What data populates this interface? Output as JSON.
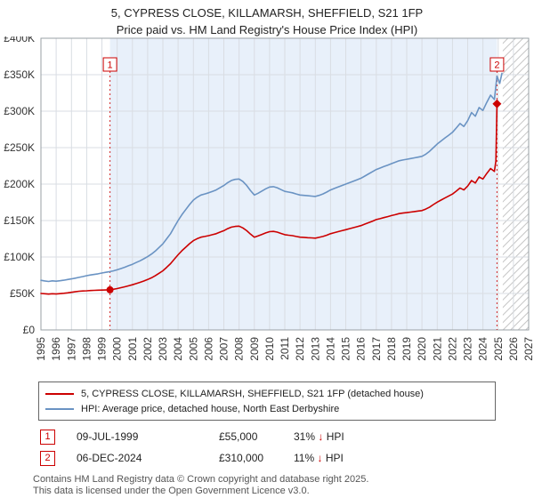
{
  "chart_data": {
    "type": "line",
    "title": "5, CYPRESS CLOSE, KILLAMARSH, SHEFFIELD, S21 1FP",
    "subtitle": "Price paid vs. HM Land Registry's House Price Index (HPI)",
    "xlim": [
      1995,
      2027
    ],
    "ylim": [
      0,
      400000
    ],
    "grid": true,
    "legend_position": "bottom",
    "x_ticks": [
      1995,
      1996,
      1997,
      1998,
      1999,
      2000,
      2001,
      2002,
      2003,
      2004,
      2005,
      2006,
      2007,
      2008,
      2009,
      2010,
      2011,
      2012,
      2013,
      2014,
      2015,
      2016,
      2017,
      2018,
      2019,
      2020,
      2021,
      2022,
      2023,
      2024,
      2025,
      2026,
      2027
    ],
    "y_ticks": [
      [
        0,
        "£0"
      ],
      [
        50000,
        "£50K"
      ],
      [
        100000,
        "£100K"
      ],
      [
        150000,
        "£150K"
      ],
      [
        200000,
        "£200K"
      ],
      [
        250000,
        "£250K"
      ],
      [
        300000,
        "£300K"
      ],
      [
        350000,
        "£350K"
      ],
      [
        400000,
        "£400K"
      ]
    ],
    "series": [
      {
        "key": "property",
        "name": "5, CYPRESS CLOSE, KILLAMARSH, SHEFFIELD, S21 1FP (detached house)",
        "color": "#cc0000",
        "points": [
          [
            1995.0,
            50000
          ],
          [
            1995.25,
            49600
          ],
          [
            1995.5,
            49100
          ],
          [
            1995.75,
            49600
          ],
          [
            1996.0,
            49300
          ],
          [
            1996.25,
            49700
          ],
          [
            1996.5,
            50300
          ],
          [
            1996.75,
            50900
          ],
          [
            1997.0,
            51600
          ],
          [
            1997.25,
            52300
          ],
          [
            1997.5,
            53100
          ],
          [
            1997.75,
            53400
          ],
          [
            1998.0,
            53600
          ],
          [
            1998.25,
            54000
          ],
          [
            1998.5,
            54300
          ],
          [
            1998.75,
            54500
          ],
          [
            1999.0,
            54600
          ],
          [
            1999.25,
            54800
          ],
          [
            1999.53,
            55000
          ],
          [
            1999.75,
            55700
          ],
          [
            2000.0,
            56700
          ],
          [
            2000.25,
            57900
          ],
          [
            2000.5,
            59100
          ],
          [
            2000.75,
            60500
          ],
          [
            2001.0,
            61900
          ],
          [
            2001.25,
            63500
          ],
          [
            2001.5,
            65200
          ],
          [
            2001.75,
            67100
          ],
          [
            2002.0,
            69100
          ],
          [
            2002.25,
            71500
          ],
          [
            2002.5,
            74300
          ],
          [
            2002.75,
            77700
          ],
          [
            2003.0,
            81100
          ],
          [
            2003.25,
            85900
          ],
          [
            2003.5,
            90800
          ],
          [
            2003.75,
            96900
          ],
          [
            2004.0,
            103100
          ],
          [
            2004.25,
            108600
          ],
          [
            2004.5,
            113400
          ],
          [
            2004.75,
            118300
          ],
          [
            2005.0,
            122400
          ],
          [
            2005.25,
            125100
          ],
          [
            2005.5,
            127200
          ],
          [
            2005.75,
            128200
          ],
          [
            2006.0,
            129300
          ],
          [
            2006.25,
            130600
          ],
          [
            2006.5,
            132000
          ],
          [
            2006.75,
            134100
          ],
          [
            2007.0,
            136100
          ],
          [
            2007.25,
            138900
          ],
          [
            2007.5,
            141000
          ],
          [
            2007.75,
            142000
          ],
          [
            2008.0,
            142300
          ],
          [
            2008.25,
            139900
          ],
          [
            2008.5,
            136100
          ],
          [
            2008.75,
            131300
          ],
          [
            2009.0,
            127200
          ],
          [
            2009.25,
            128900
          ],
          [
            2009.5,
            131000
          ],
          [
            2009.75,
            133000
          ],
          [
            2010.0,
            134800
          ],
          [
            2010.25,
            135100
          ],
          [
            2010.5,
            134100
          ],
          [
            2010.75,
            132300
          ],
          [
            2011.0,
            130600
          ],
          [
            2011.25,
            129900
          ],
          [
            2011.5,
            129300
          ],
          [
            2011.75,
            128200
          ],
          [
            2012.0,
            127200
          ],
          [
            2012.25,
            126900
          ],
          [
            2012.5,
            126500
          ],
          [
            2012.75,
            126200
          ],
          [
            2013.0,
            125800
          ],
          [
            2013.25,
            126900
          ],
          [
            2013.5,
            128200
          ],
          [
            2013.75,
            129900
          ],
          [
            2014.0,
            132000
          ],
          [
            2014.25,
            133400
          ],
          [
            2014.5,
            134800
          ],
          [
            2014.75,
            136100
          ],
          [
            2015.0,
            137500
          ],
          [
            2015.25,
            138900
          ],
          [
            2015.5,
            140300
          ],
          [
            2015.75,
            141600
          ],
          [
            2016.0,
            143000
          ],
          [
            2016.25,
            145100
          ],
          [
            2016.5,
            147100
          ],
          [
            2016.75,
            149200
          ],
          [
            2017.0,
            151300
          ],
          [
            2017.25,
            152600
          ],
          [
            2017.5,
            154000
          ],
          [
            2017.75,
            155400
          ],
          [
            2018.0,
            156800
          ],
          [
            2018.25,
            158100
          ],
          [
            2018.5,
            159500
          ],
          [
            2018.75,
            160200
          ],
          [
            2019.0,
            160900
          ],
          [
            2019.25,
            161600
          ],
          [
            2019.5,
            162300
          ],
          [
            2019.75,
            163000
          ],
          [
            2020.0,
            163600
          ],
          [
            2020.25,
            165700
          ],
          [
            2020.5,
            168400
          ],
          [
            2020.75,
            171900
          ],
          [
            2021.0,
            175300
          ],
          [
            2021.25,
            178100
          ],
          [
            2021.5,
            180800
          ],
          [
            2021.75,
            183600
          ],
          [
            2022.0,
            186300
          ],
          [
            2022.25,
            190400
          ],
          [
            2022.5,
            194600
          ],
          [
            2022.75,
            191900
          ],
          [
            2023.0,
            197300
          ],
          [
            2023.25,
            204900
          ],
          [
            2023.5,
            201500
          ],
          [
            2023.75,
            209700
          ],
          [
            2024.0,
            207000
          ],
          [
            2024.25,
            214500
          ],
          [
            2024.5,
            221400
          ],
          [
            2024.75,
            217300
          ],
          [
            2024.85,
            232000
          ],
          [
            2024.92,
            310000
          ]
        ]
      },
      {
        "key": "hpi",
        "name": "HPI: Average price, detached house, North East Derbyshire",
        "color": "#6a93c3",
        "points": [
          [
            1995.0,
            68000
          ],
          [
            1995.25,
            67200
          ],
          [
            1995.5,
            66500
          ],
          [
            1995.75,
            67300
          ],
          [
            1996.0,
            66800
          ],
          [
            1996.25,
            67400
          ],
          [
            1996.5,
            68200
          ],
          [
            1996.75,
            69100
          ],
          [
            1997.0,
            70000
          ],
          [
            1997.25,
            71000
          ],
          [
            1997.5,
            72100
          ],
          [
            1997.75,
            73200
          ],
          [
            1998.0,
            74400
          ],
          [
            1998.25,
            75400
          ],
          [
            1998.5,
            76100
          ],
          [
            1998.75,
            77000
          ],
          [
            1999.0,
            78000
          ],
          [
            1999.25,
            79000
          ],
          [
            1999.53,
            80000
          ],
          [
            1999.75,
            81000
          ],
          [
            2000.0,
            82500
          ],
          [
            2000.25,
            84200
          ],
          [
            2000.5,
            86000
          ],
          [
            2000.75,
            88000
          ],
          [
            2001.0,
            90000
          ],
          [
            2001.25,
            92400
          ],
          [
            2001.5,
            94800
          ],
          [
            2001.75,
            97600
          ],
          [
            2002.0,
            100500
          ],
          [
            2002.25,
            104000
          ],
          [
            2002.5,
            108000
          ],
          [
            2002.75,
            113000
          ],
          [
            2003.0,
            118000
          ],
          [
            2003.25,
            125000
          ],
          [
            2003.5,
            132000
          ],
          [
            2003.75,
            141000
          ],
          [
            2004.0,
            150000
          ],
          [
            2004.25,
            158000
          ],
          [
            2004.5,
            165000
          ],
          [
            2004.75,
            172000
          ],
          [
            2005.0,
            178000
          ],
          [
            2005.25,
            182000
          ],
          [
            2005.5,
            185000
          ],
          [
            2005.75,
            186500
          ],
          [
            2006.0,
            188000
          ],
          [
            2006.25,
            190000
          ],
          [
            2006.5,
            192000
          ],
          [
            2006.75,
            195000
          ],
          [
            2007.0,
            198000
          ],
          [
            2007.25,
            202000
          ],
          [
            2007.5,
            205000
          ],
          [
            2007.75,
            206500
          ],
          [
            2008.0,
            207000
          ],
          [
            2008.25,
            203500
          ],
          [
            2008.5,
            198000
          ],
          [
            2008.75,
            191000
          ],
          [
            2009.0,
            185000
          ],
          [
            2009.25,
            187500
          ],
          [
            2009.5,
            190500
          ],
          [
            2009.75,
            193500
          ],
          [
            2010.0,
            196000
          ],
          [
            2010.25,
            196500
          ],
          [
            2010.5,
            195000
          ],
          [
            2010.75,
            192500
          ],
          [
            2011.0,
            190000
          ],
          [
            2011.25,
            189000
          ],
          [
            2011.5,
            188000
          ],
          [
            2011.75,
            186500
          ],
          [
            2012.0,
            185000
          ],
          [
            2012.25,
            184500
          ],
          [
            2012.5,
            184000
          ],
          [
            2012.75,
            183500
          ],
          [
            2013.0,
            183000
          ],
          [
            2013.25,
            184500
          ],
          [
            2013.5,
            186500
          ],
          [
            2013.75,
            189000
          ],
          [
            2014.0,
            192000
          ],
          [
            2014.25,
            194000
          ],
          [
            2014.5,
            196000
          ],
          [
            2014.75,
            198000
          ],
          [
            2015.0,
            200000
          ],
          [
            2015.25,
            202000
          ],
          [
            2015.5,
            204000
          ],
          [
            2015.75,
            206000
          ],
          [
            2016.0,
            208000
          ],
          [
            2016.25,
            211000
          ],
          [
            2016.5,
            214000
          ],
          [
            2016.75,
            217000
          ],
          [
            2017.0,
            220000
          ],
          [
            2017.25,
            222000
          ],
          [
            2017.5,
            224000
          ],
          [
            2017.75,
            226000
          ],
          [
            2018.0,
            228000
          ],
          [
            2018.25,
            230000
          ],
          [
            2018.5,
            232000
          ],
          [
            2018.75,
            233000
          ],
          [
            2019.0,
            234000
          ],
          [
            2019.25,
            235000
          ],
          [
            2019.5,
            236000
          ],
          [
            2019.75,
            237000
          ],
          [
            2020.0,
            238000
          ],
          [
            2020.25,
            241000
          ],
          [
            2020.5,
            245000
          ],
          [
            2020.75,
            250000
          ],
          [
            2021.0,
            255000
          ],
          [
            2021.25,
            259000
          ],
          [
            2021.5,
            263000
          ],
          [
            2021.75,
            267000
          ],
          [
            2022.0,
            271000
          ],
          [
            2022.25,
            277000
          ],
          [
            2022.5,
            283000
          ],
          [
            2022.75,
            279000
          ],
          [
            2023.0,
            287000
          ],
          [
            2023.25,
            298000
          ],
          [
            2023.5,
            293000
          ],
          [
            2023.75,
            305000
          ],
          [
            2024.0,
            301000
          ],
          [
            2024.25,
            312000
          ],
          [
            2024.5,
            322000
          ],
          [
            2024.75,
            316000
          ],
          [
            2024.92,
            348000
          ],
          [
            2025.1,
            338000
          ],
          [
            2025.25,
            352000
          ]
        ]
      }
    ],
    "markers": [
      {
        "label": "1",
        "x": 1999.53,
        "y": 55000,
        "shape": "circle"
      },
      {
        "label": "2",
        "x": 2024.92,
        "y": 310000,
        "shape": "diamond"
      }
    ],
    "marker_color": "#cc0000",
    "shaded_region": {
      "from": 1999.53,
      "to": 2024.92,
      "color": "#e8f0fa"
    },
    "hatched_region": {
      "from": 2025.3,
      "to": 2027
    }
  },
  "annotations": [
    {
      "num": "1",
      "date": "09-JUL-1999",
      "price": "£55,000",
      "pct": "31%",
      "arrow": "↓",
      "vs": "HPI"
    },
    {
      "num": "2",
      "date": "06-DEC-2024",
      "price": "£310,000",
      "pct": "11%",
      "arrow": "↓",
      "vs": "HPI"
    }
  ],
  "footer": {
    "line1": "Contains HM Land Registry data © Crown copyright and database right 2025.",
    "line2": "This data is licensed under the Open Government Licence v3.0."
  }
}
